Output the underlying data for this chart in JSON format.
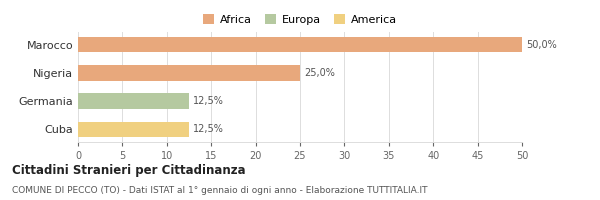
{
  "categories": [
    "Marocco",
    "Nigeria",
    "Germania",
    "Cuba"
  ],
  "values": [
    50.0,
    25.0,
    12.5,
    12.5
  ],
  "bar_colors": [
    "#e8a87c",
    "#e8a87c",
    "#b5c9a0",
    "#f0d080"
  ],
  "continent_labels": [
    "Africa",
    "Europa",
    "America"
  ],
  "legend_colors": [
    "#e8a87c",
    "#b5c9a0",
    "#f0d080"
  ],
  "value_labels": [
    "50,0%",
    "25,0%",
    "12,5%",
    "12,5%"
  ],
  "xlim": [
    0,
    50
  ],
  "xticks": [
    0,
    5,
    10,
    15,
    20,
    25,
    30,
    35,
    40,
    45,
    50
  ],
  "title_bold": "Cittadini Stranieri per Cittadinanza",
  "subtitle": "COMUNE DI PECCO (TO) - Dati ISTAT al 1° gennaio di ogni anno - Elaborazione TUTTITALIA.IT",
  "bg_color": "#ffffff",
  "bar_height": 0.55,
  "grid_color": "#dddddd"
}
